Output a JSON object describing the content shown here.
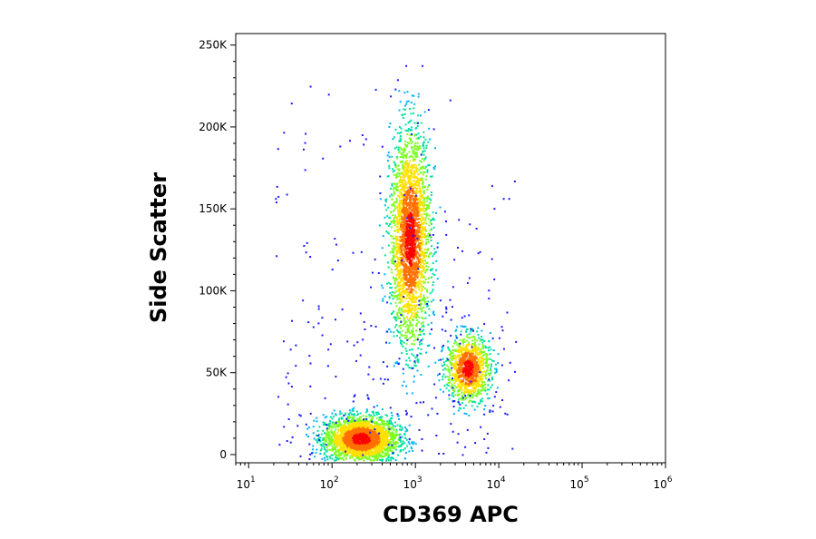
{
  "chart_data": {
    "type": "scatter",
    "xlabel": "CD369 APC",
    "ylabel": "Side Scatter",
    "x_scale": "log",
    "xlim": [
      7,
      1000000
    ],
    "ylim": [
      -5000,
      257000
    ],
    "x_ticks": [
      {
        "value": 10,
        "base": "10",
        "exp": "1"
      },
      {
        "value": 100,
        "base": "10",
        "exp": "2"
      },
      {
        "value": 1000,
        "base": "10",
        "exp": "3"
      },
      {
        "value": 10000,
        "base": "10",
        "exp": "4"
      },
      {
        "value": 100000,
        "base": "10",
        "exp": "5"
      },
      {
        "value": 1000000,
        "base": "10",
        "exp": "6"
      }
    ],
    "y_ticks": [
      {
        "value": 0,
        "label": "0"
      },
      {
        "value": 50000,
        "label": "50K"
      },
      {
        "value": 100000,
        "label": "100K"
      },
      {
        "value": 150000,
        "label": "150K"
      },
      {
        "value": 200000,
        "label": "200K"
      },
      {
        "value": 250000,
        "label": "250K"
      }
    ],
    "populations": [
      {
        "x_center": 220,
        "y_center": 10000,
        "x_spread_decades": 0.22,
        "y_spread": 7000,
        "density": "high"
      },
      {
        "x_center": 850,
        "y_center": 132000,
        "x_spread_decades": 0.12,
        "y_spread": 32000,
        "density": "high"
      },
      {
        "x_center": 4200,
        "y_center": 53000,
        "x_spread_decades": 0.13,
        "y_spread": 10000,
        "density": "medium"
      }
    ],
    "density_colors": [
      "#1a1aff",
      "#00b4ff",
      "#00e0a0",
      "#7cff20",
      "#ffe000",
      "#ff7000",
      "#ff0000"
    ],
    "grid": false,
    "legend": "none"
  }
}
